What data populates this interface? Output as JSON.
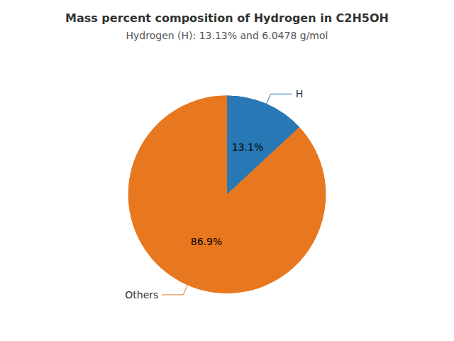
{
  "chart_data": {
    "type": "pie",
    "title": "Mass percent composition of Hydrogen in C2H5OH",
    "subtitle": "Hydrogen (H): 13.13% and 6.0478 g/mol",
    "categories": [
      "H",
      "Others"
    ],
    "values": [
      13.1,
      86.9
    ],
    "value_labels": [
      "13.1%",
      "86.9%"
    ],
    "colors": [
      "#2878b5",
      "#e87820"
    ],
    "data_labels": true
  }
}
